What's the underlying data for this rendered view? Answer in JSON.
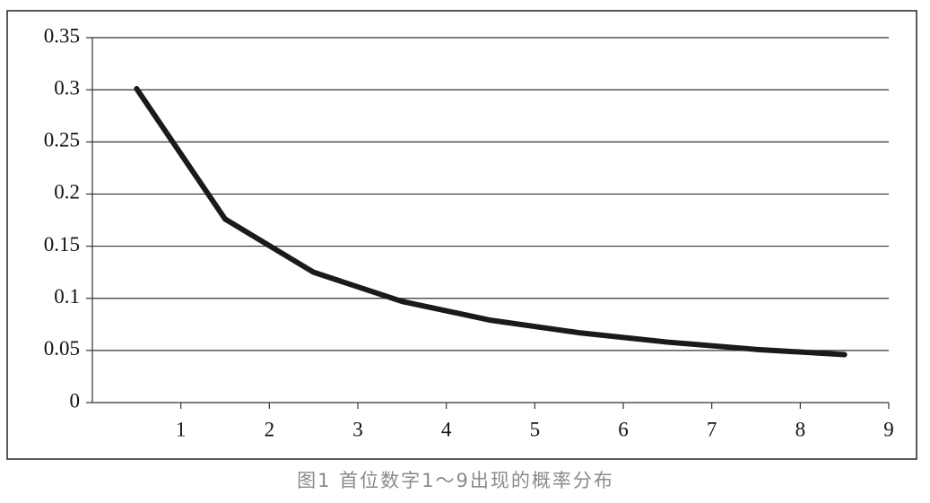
{
  "chart_data": {
    "type": "line",
    "caption": "图1 首位数字1～9出现的概率分布",
    "x": [
      0.5,
      1.5,
      2.5,
      3.5,
      4.5,
      5.5,
      6.5,
      7.5,
      8.5
    ],
    "series": [
      {
        "color": "#1a1a1a",
        "values": [
          0.301,
          0.176,
          0.125,
          0.097,
          0.079,
          0.067,
          0.058,
          0.051,
          0.046
        ]
      }
    ],
    "xlim": [
      0,
      9
    ],
    "xticks": [
      1,
      2,
      3,
      4,
      5,
      6,
      7,
      8,
      9
    ],
    "ylim": [
      0,
      0.35
    ],
    "yticks": [
      0,
      0.05,
      0.1,
      0.15,
      0.2,
      0.25,
      0.3,
      0.35
    ],
    "grid": true
  }
}
